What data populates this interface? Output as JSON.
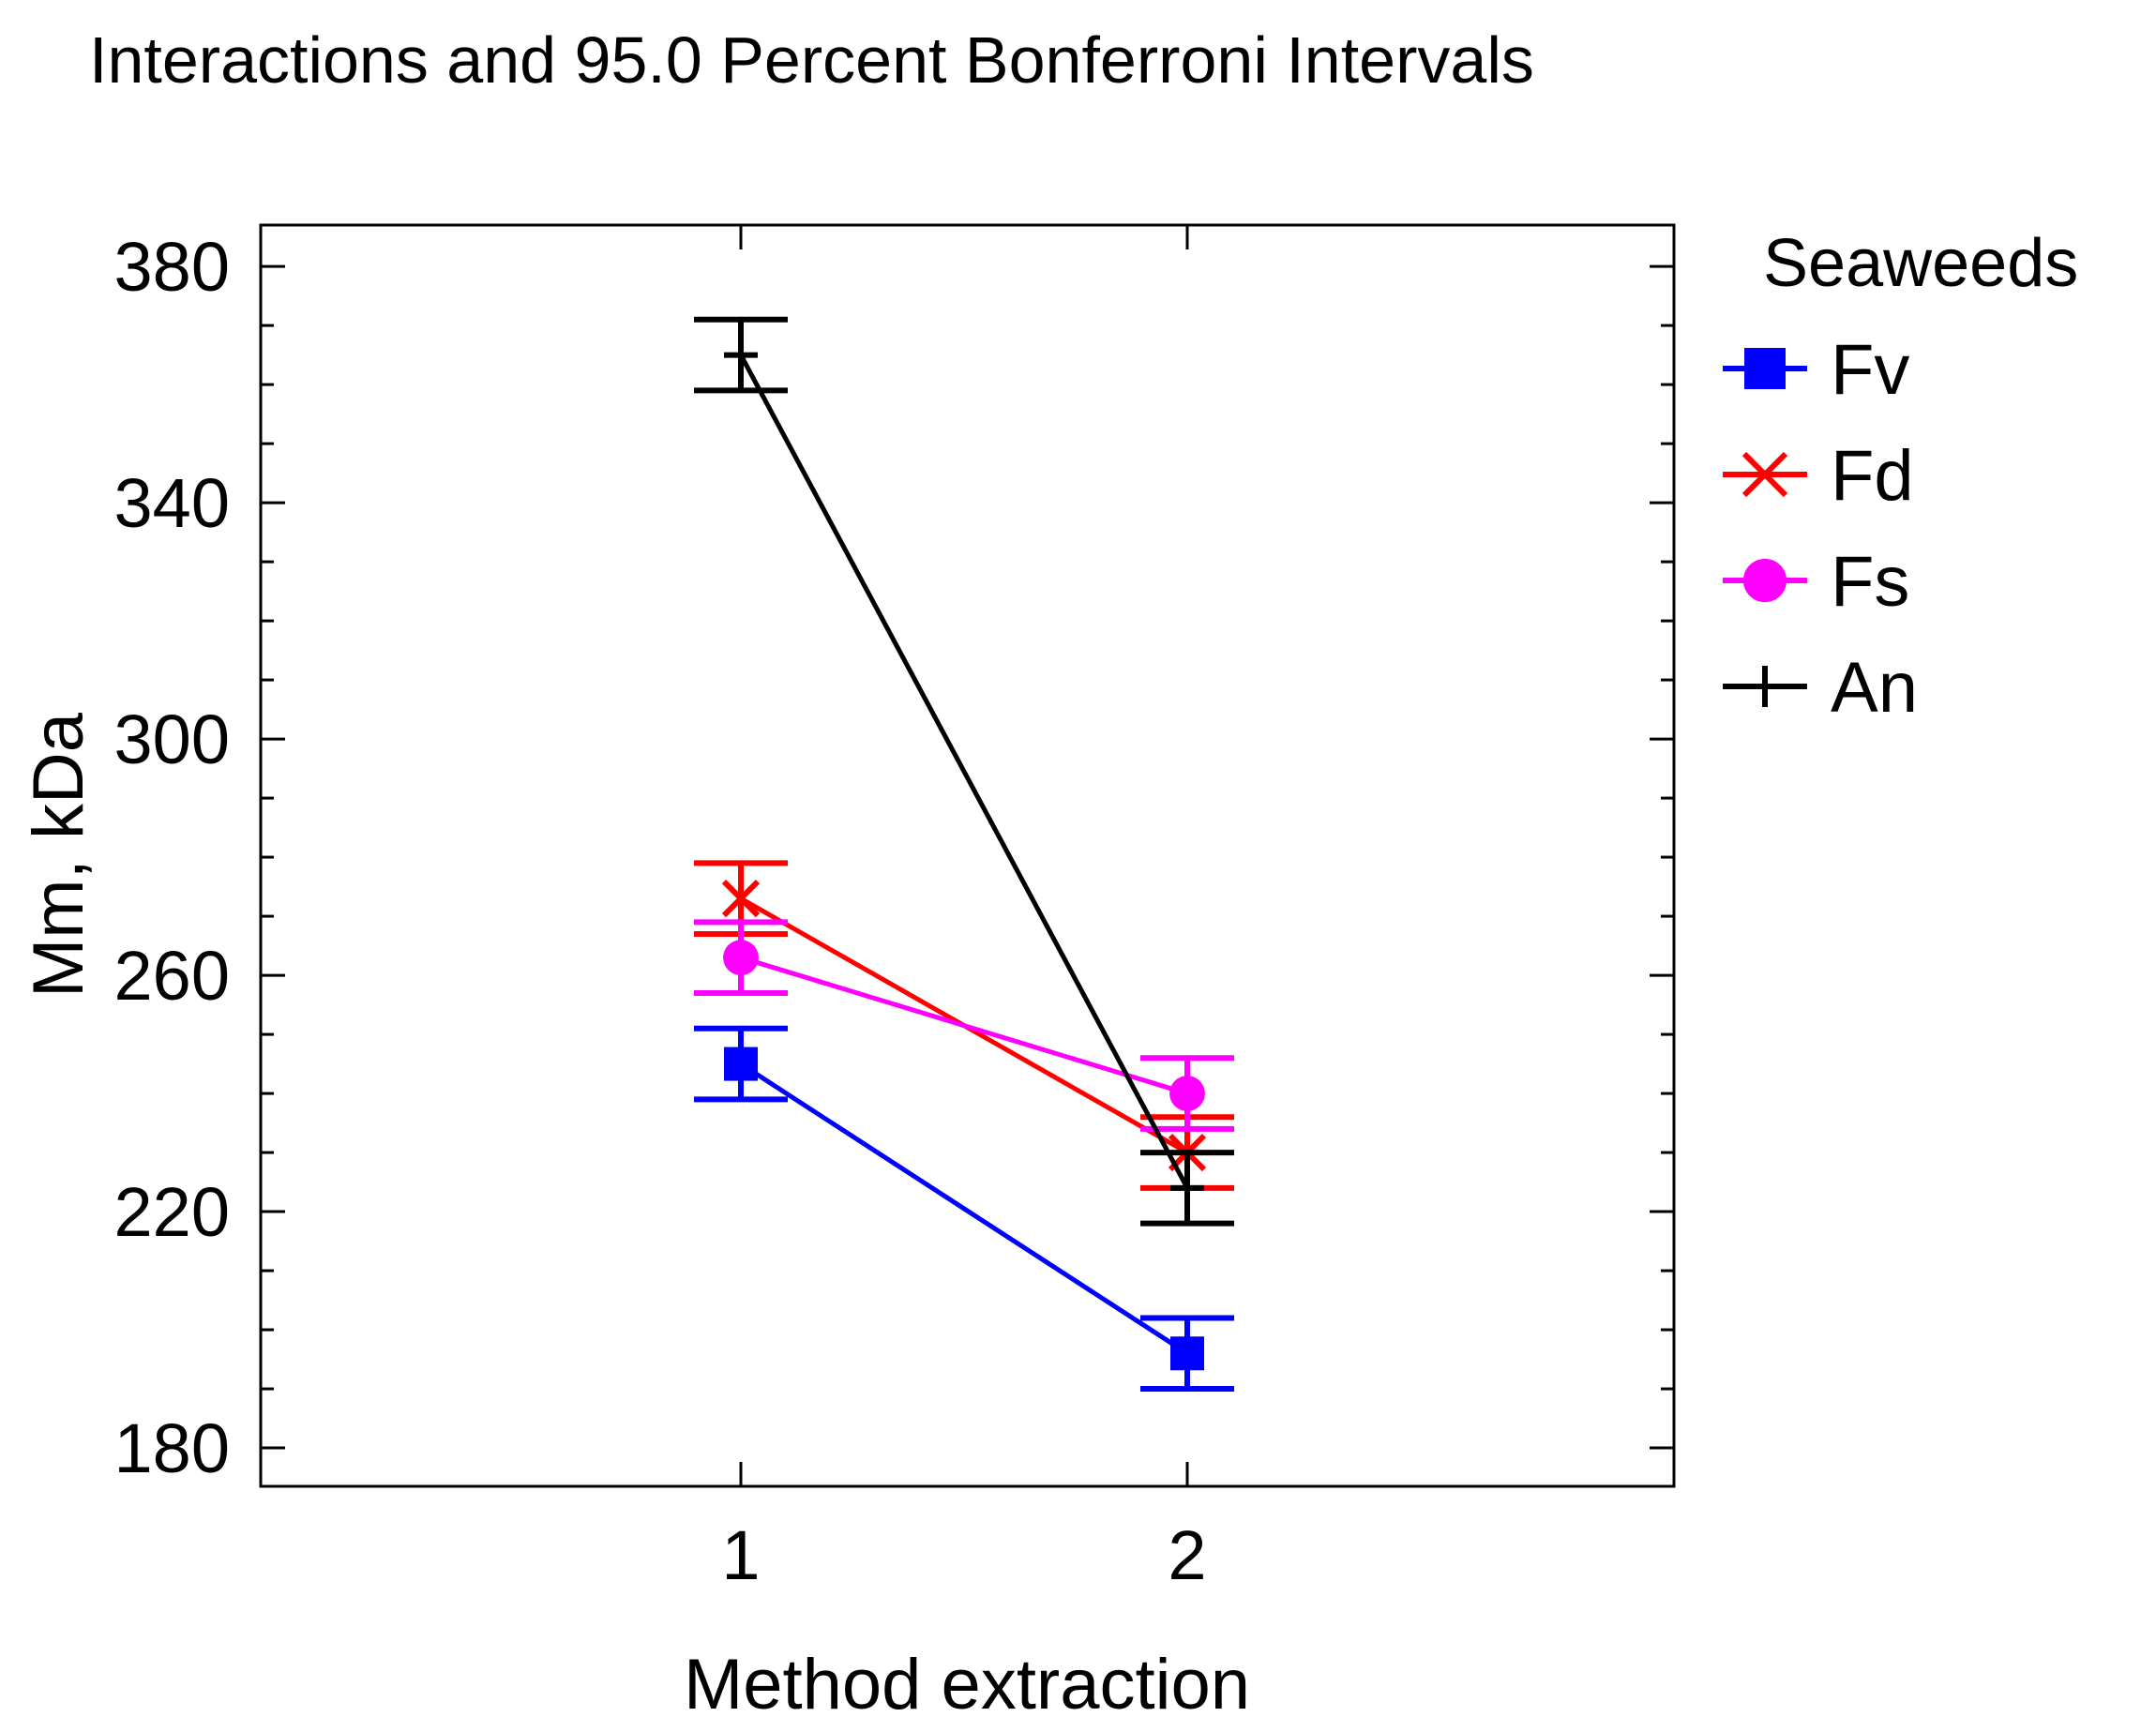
{
  "chart_data": {
    "type": "line",
    "title": "Interactions and 95.0 Percent Bonferroni Intervals",
    "xlabel": "Method extraction",
    "ylabel": "Mm, kDa",
    "categories": [
      "1",
      "2"
    ],
    "ylim": [
      173.5,
      387
    ],
    "yticks": [
      180,
      220,
      260,
      300,
      340,
      380
    ],
    "ytick_labels": [
      "180",
      "220",
      "260",
      "300",
      "340",
      "380"
    ],
    "minor_tick_step": 10,
    "grid": false,
    "legend": {
      "title": "Seaweeds",
      "position": "right"
    },
    "series": [
      {
        "name": "Fv",
        "color": "#0000ff",
        "marker": "square",
        "values": [
          245,
          196
        ],
        "lower": [
          239,
          190
        ],
        "upper": [
          251,
          202
        ]
      },
      {
        "name": "Fd",
        "color": "#ff0000",
        "marker": "x",
        "values": [
          273,
          230
        ],
        "lower": [
          267,
          224
        ],
        "upper": [
          279,
          236
        ]
      },
      {
        "name": "Fs",
        "color": "#ff00ff",
        "marker": "circle",
        "values": [
          263,
          240
        ],
        "lower": [
          257,
          234
        ],
        "upper": [
          269,
          246
        ]
      },
      {
        "name": "An",
        "color": "#000000",
        "marker": "plus",
        "values": [
          365,
          224
        ],
        "lower": [
          359,
          218
        ],
        "upper": [
          371,
          230
        ]
      }
    ]
  }
}
